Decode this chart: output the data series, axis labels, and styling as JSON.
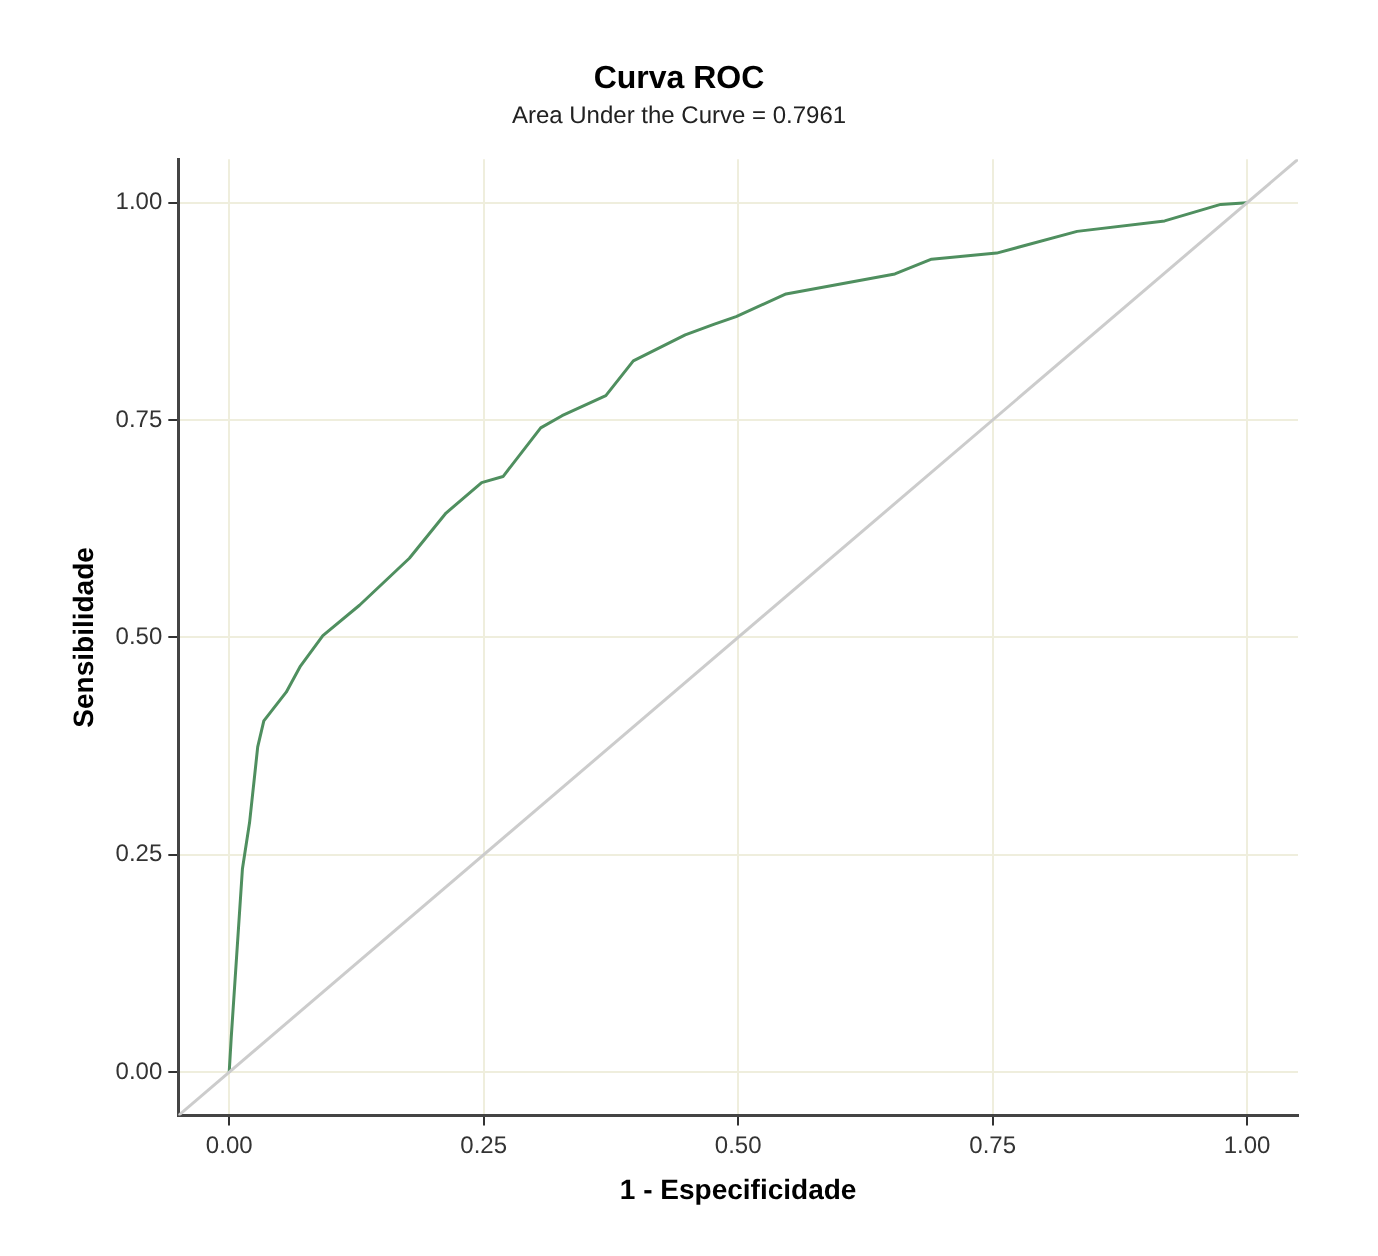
{
  "chart_data": {
    "type": "line",
    "title": "Curva ROC",
    "subtitle": "Area Under the Curve = 0.7961",
    "xlabel": "1 - Especificidade",
    "ylabel": "Sensibilidade",
    "xlim": [
      -0.05,
      1.05
    ],
    "ylim": [
      -0.05,
      1.05
    ],
    "xticks": [
      {
        "value": 0,
        "label": "0.00"
      },
      {
        "value": 0.25,
        "label": "0.25"
      },
      {
        "value": 0.5,
        "label": "0.50"
      },
      {
        "value": 0.75,
        "label": "0.75"
      },
      {
        "value": 1,
        "label": "1.00"
      }
    ],
    "yticks": [
      {
        "value": 0,
        "label": "0.00"
      },
      {
        "value": 0.25,
        "label": "0.25"
      },
      {
        "value": 0.5,
        "label": "0.50"
      },
      {
        "value": 0.75,
        "label": "0.75"
      },
      {
        "value": 1,
        "label": "1.00"
      }
    ],
    "grid": true,
    "legend": false,
    "marker": "none",
    "line_style": "solid",
    "series": [
      {
        "color": "#cccccc",
        "x": [
          -0.05,
          1.05
        ],
        "values": [
          -0.05,
          1.05
        ]
      },
      {
        "color": "#4f8f5f",
        "x": [
          0,
          0.002,
          0.013,
          0.02,
          0.028,
          0.034,
          0.056,
          0.07,
          0.092,
          0.128,
          0.177,
          0.213,
          0.248,
          0.269,
          0.306,
          0.327,
          0.37,
          0.397,
          0.448,
          0.476,
          0.498,
          0.547,
          0.654,
          0.69,
          0.754,
          0.833,
          0.919,
          0.974,
          1
        ],
        "values": [
          0,
          0.04,
          0.234,
          0.287,
          0.374,
          0.404,
          0.437,
          0.467,
          0.502,
          0.537,
          0.591,
          0.643,
          0.678,
          0.685,
          0.741,
          0.755,
          0.778,
          0.818,
          0.848,
          0.86,
          0.869,
          0.895,
          0.918,
          0.935,
          0.942,
          0.967,
          0.979,
          0.998,
          1
        ]
      }
    ]
  }
}
